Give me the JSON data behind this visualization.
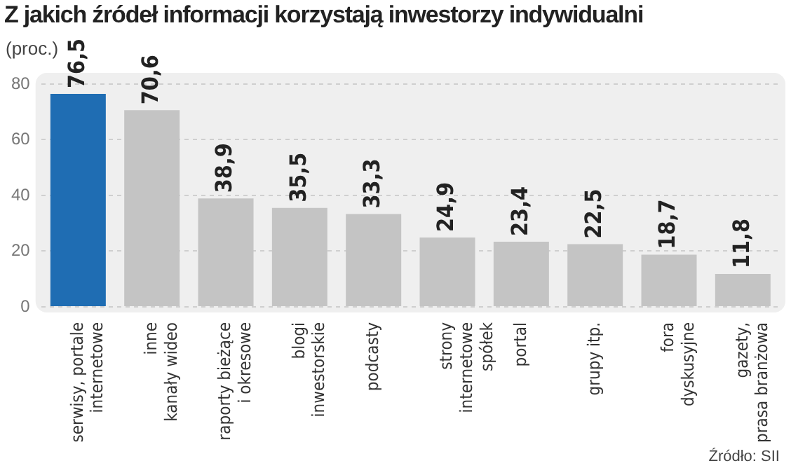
{
  "chart_data": {
    "type": "bar",
    "title": "Z jakich źródeł informacji korzystają inwestorzy indywidualni",
    "ylabel": "(proc.)",
    "categories": [
      "serwisy, portale\ninternetowe",
      "inne\nkanały wideo",
      "raporty bieżące\ni okresowe",
      "blogi\ninwestorskie",
      "podcasty",
      "strony\ninternetowe\nspółek",
      "portal",
      "grupy itp.",
      "fora\ndyskusyjne",
      "gazety,\nprasa branżowa"
    ],
    "values": [
      76.5,
      70.6,
      38.9,
      35.5,
      33.3,
      24.9,
      23.4,
      22.5,
      18.7,
      11.8
    ],
    "colors": [
      "#1f6db3",
      "#c4c4c4",
      "#c4c4c4",
      "#c4c4c4",
      "#c4c4c4",
      "#c4c4c4",
      "#c4c4c4",
      "#c4c4c4",
      "#c4c4c4",
      "#c4c4c4"
    ],
    "value_labels": [
      "76,5",
      "70,6",
      "38,9",
      "35,5",
      "33,3",
      "24,9",
      "23,4",
      "22,5",
      "18,7",
      "11,8"
    ],
    "ylim": [
      0,
      80
    ],
    "yticks": [
      0,
      20,
      40,
      60,
      80
    ],
    "grid": "y",
    "annotations": [
      "Źródło: SII"
    ]
  }
}
